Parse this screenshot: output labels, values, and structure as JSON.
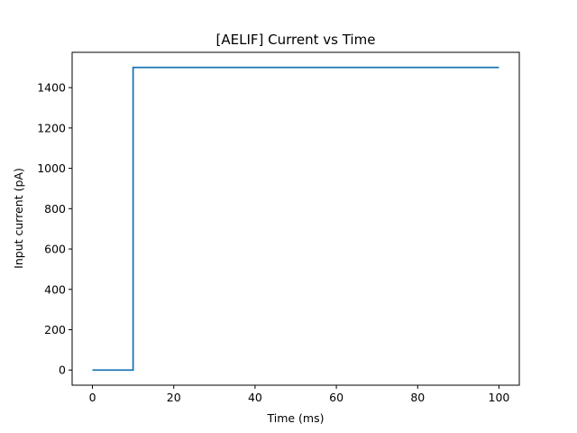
{
  "chart_data": {
    "type": "line",
    "title": "[AELIF] Current vs Time",
    "xlabel": "Time (ms)",
    "ylabel": "Input current (pA)",
    "xlim": [
      -5,
      105
    ],
    "ylim": [
      -75,
      1575
    ],
    "xticks": [
      0,
      20,
      40,
      60,
      80,
      100
    ],
    "yticks": [
      0,
      200,
      400,
      600,
      800,
      1000,
      1200,
      1400
    ],
    "grid": false,
    "series": [
      {
        "color": "#1f77b4",
        "x": [
          0,
          10,
          10,
          100
        ],
        "y": [
          0,
          0,
          1500,
          1500
        ]
      }
    ]
  }
}
